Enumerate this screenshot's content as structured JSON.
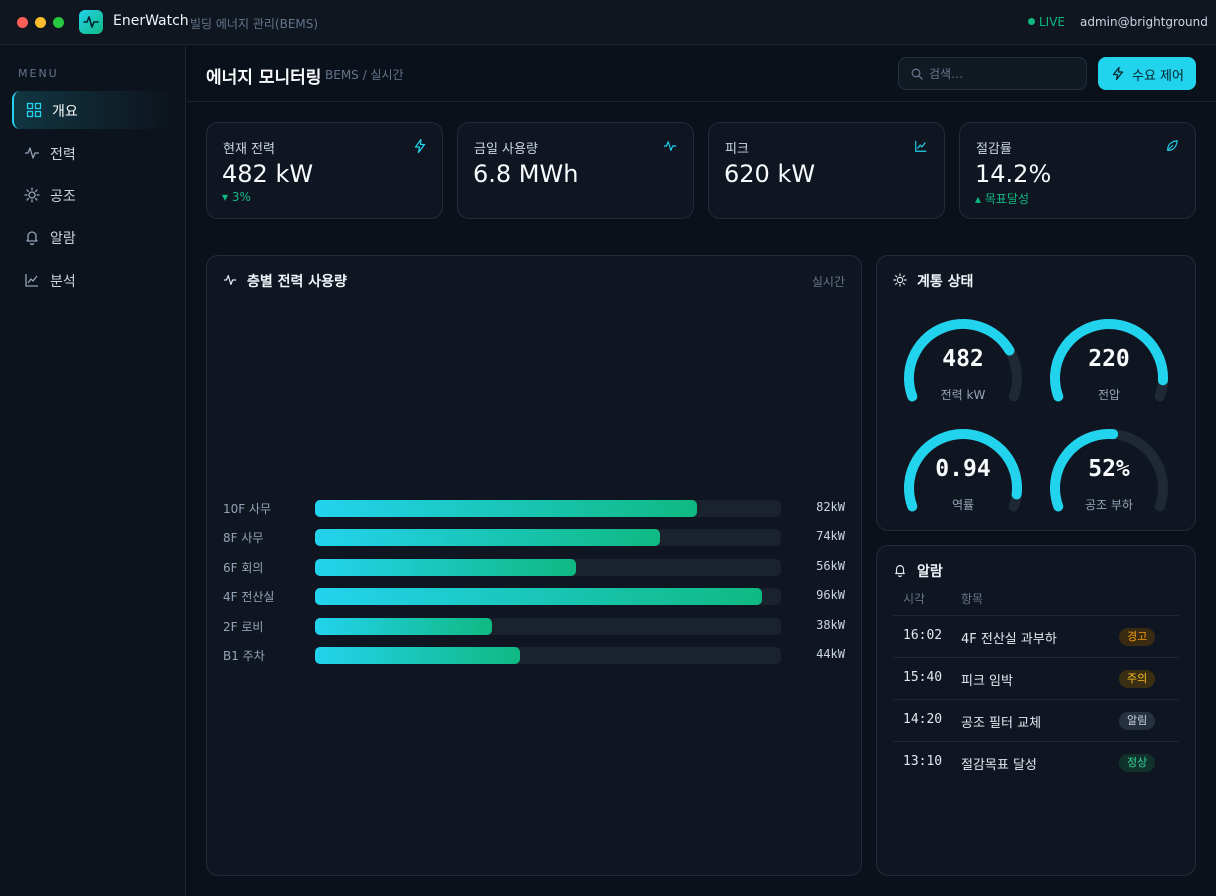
{
  "app": {
    "name": "EnerWatch",
    "subtitle": "빌딩 에너지 관리(BEMS)",
    "status": "LIVE",
    "user": "admin@brightground"
  },
  "sidebar": {
    "menu_label": "MENU",
    "items": [
      {
        "label": "개요",
        "icon": "grid-icon",
        "active": true
      },
      {
        "label": "전력",
        "icon": "pulse-icon",
        "active": false
      },
      {
        "label": "공조",
        "icon": "sun-icon",
        "active": false
      },
      {
        "label": "알람",
        "icon": "bell-icon",
        "active": false
      },
      {
        "label": "분석",
        "icon": "chart-line-icon",
        "active": false
      }
    ]
  },
  "header": {
    "title": "에너지 모니터링",
    "breadcrumb": "BEMS / 실시간",
    "search_placeholder": "검색…",
    "demand_button": "수요 제어"
  },
  "kpis": [
    {
      "label": "현재 전력",
      "value": "482 kW",
      "delta": "▾ 3%",
      "icon": "bolt-icon"
    },
    {
      "label": "금일 사용량",
      "value": "6.8 MWh",
      "delta": "",
      "icon": "pulse-icon"
    },
    {
      "label": "피크",
      "value": "620 kW",
      "delta": "",
      "icon": "chart-line-icon"
    },
    {
      "label": "절감률",
      "value": "14.2%",
      "delta": "▴ 목표달성",
      "icon": "leaf-icon"
    }
  ],
  "floor_panel": {
    "title": "층별 전력 사용량",
    "meta": "실시간",
    "max_kw": 100,
    "rows": [
      {
        "label": "10F 사무",
        "kw": 82,
        "value": "82kW"
      },
      {
        "label": "8F 사무",
        "kw": 74,
        "value": "74kW"
      },
      {
        "label": "6F 회의",
        "kw": 56,
        "value": "56kW"
      },
      {
        "label": "4F 전산실",
        "kw": 96,
        "value": "96kW"
      },
      {
        "label": "2F 로비",
        "kw": 38,
        "value": "38kW"
      },
      {
        "label": "B1 주차",
        "kw": 44,
        "value": "44kW"
      }
    ]
  },
  "system_panel": {
    "title": "계통 상태",
    "gauges": [
      {
        "value": "482",
        "label": "전력 kW",
        "fraction": 0.77
      },
      {
        "value": "220",
        "label": "전압",
        "fraction": 0.92
      },
      {
        "value": "0.94",
        "label": "역률",
        "fraction": 0.94
      },
      {
        "value": "52%",
        "label": "공조 부하",
        "fraction": 0.52
      }
    ]
  },
  "alerts_panel": {
    "title": "알람",
    "columns": [
      "시각",
      "항목"
    ],
    "rows": [
      {
        "time": "16:02",
        "item": "4F 전산실 과부하",
        "level": "경고",
        "color": "#f59e0b",
        "bg": "#3a2a12"
      },
      {
        "time": "15:40",
        "item": "피크 임박",
        "level": "주의",
        "color": "#fbbf24",
        "bg": "#3a2f12"
      },
      {
        "time": "14:20",
        "item": "공조 필터 교체",
        "level": "알림",
        "color": "#cbd5e1",
        "bg": "#253040"
      },
      {
        "time": "13:10",
        "item": "절감목표 달성",
        "level": "정상",
        "color": "#34d399",
        "bg": "#10322a"
      }
    ]
  },
  "colors": {
    "accent": "#22d3ee",
    "accent2": "#10b981",
    "warn": "#f59e0b"
  }
}
